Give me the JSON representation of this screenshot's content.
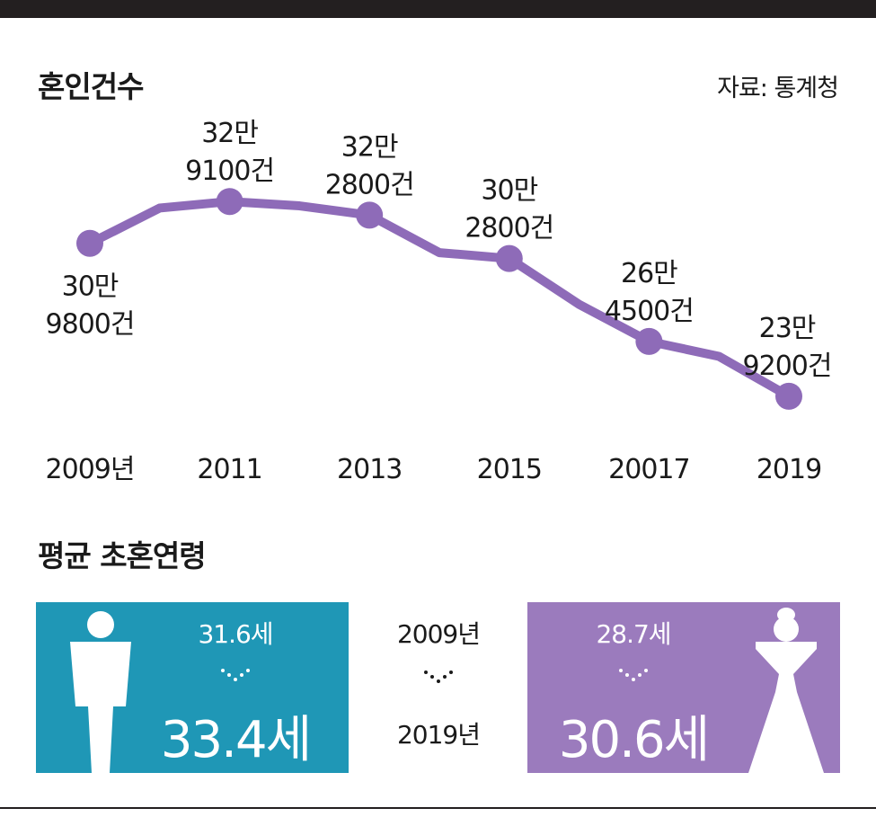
{
  "header": {
    "title": "혼인건수",
    "source": "자료: 통계청"
  },
  "chart_data": {
    "type": "line",
    "x": [
      2009,
      2010,
      2011,
      2012,
      2013,
      2014,
      2015,
      2016,
      2017,
      2018,
      2019
    ],
    "values": [
      309800,
      326100,
      329100,
      327100,
      322800,
      305500,
      302800,
      281600,
      264500,
      257600,
      239200
    ],
    "x_tick_labels": [
      "2009년",
      "2011",
      "2013",
      "2015",
      "20017",
      "2019"
    ],
    "point_labels": [
      {
        "line1": "30만",
        "line2": "9800건"
      },
      {
        "line1": "32만",
        "line2": "9100건"
      },
      {
        "line1": "32만",
        "line2": "2800건"
      },
      {
        "line1": "30만",
        "line2": "2800건"
      },
      {
        "line1": "26만",
        "line2": "4500건"
      },
      {
        "line1": "23만",
        "line2": "9200건"
      }
    ],
    "labeled_years": [
      2009,
      2011,
      2013,
      2015,
      2017,
      2019
    ],
    "ylim": [
      230000,
      335000
    ],
    "grid": false,
    "line_color": "#8e6bb8"
  },
  "age_section": {
    "title": "평균 초혼연령",
    "years": {
      "from": "2009년",
      "to": "2019년"
    },
    "male": {
      "from": "31.6세",
      "to": "33.4세",
      "color": "#1f97b6",
      "icon": "man-icon"
    },
    "female": {
      "from": "28.7세",
      "to": "30.6세",
      "color": "#9b7bbd",
      "icon": "woman-icon"
    }
  }
}
